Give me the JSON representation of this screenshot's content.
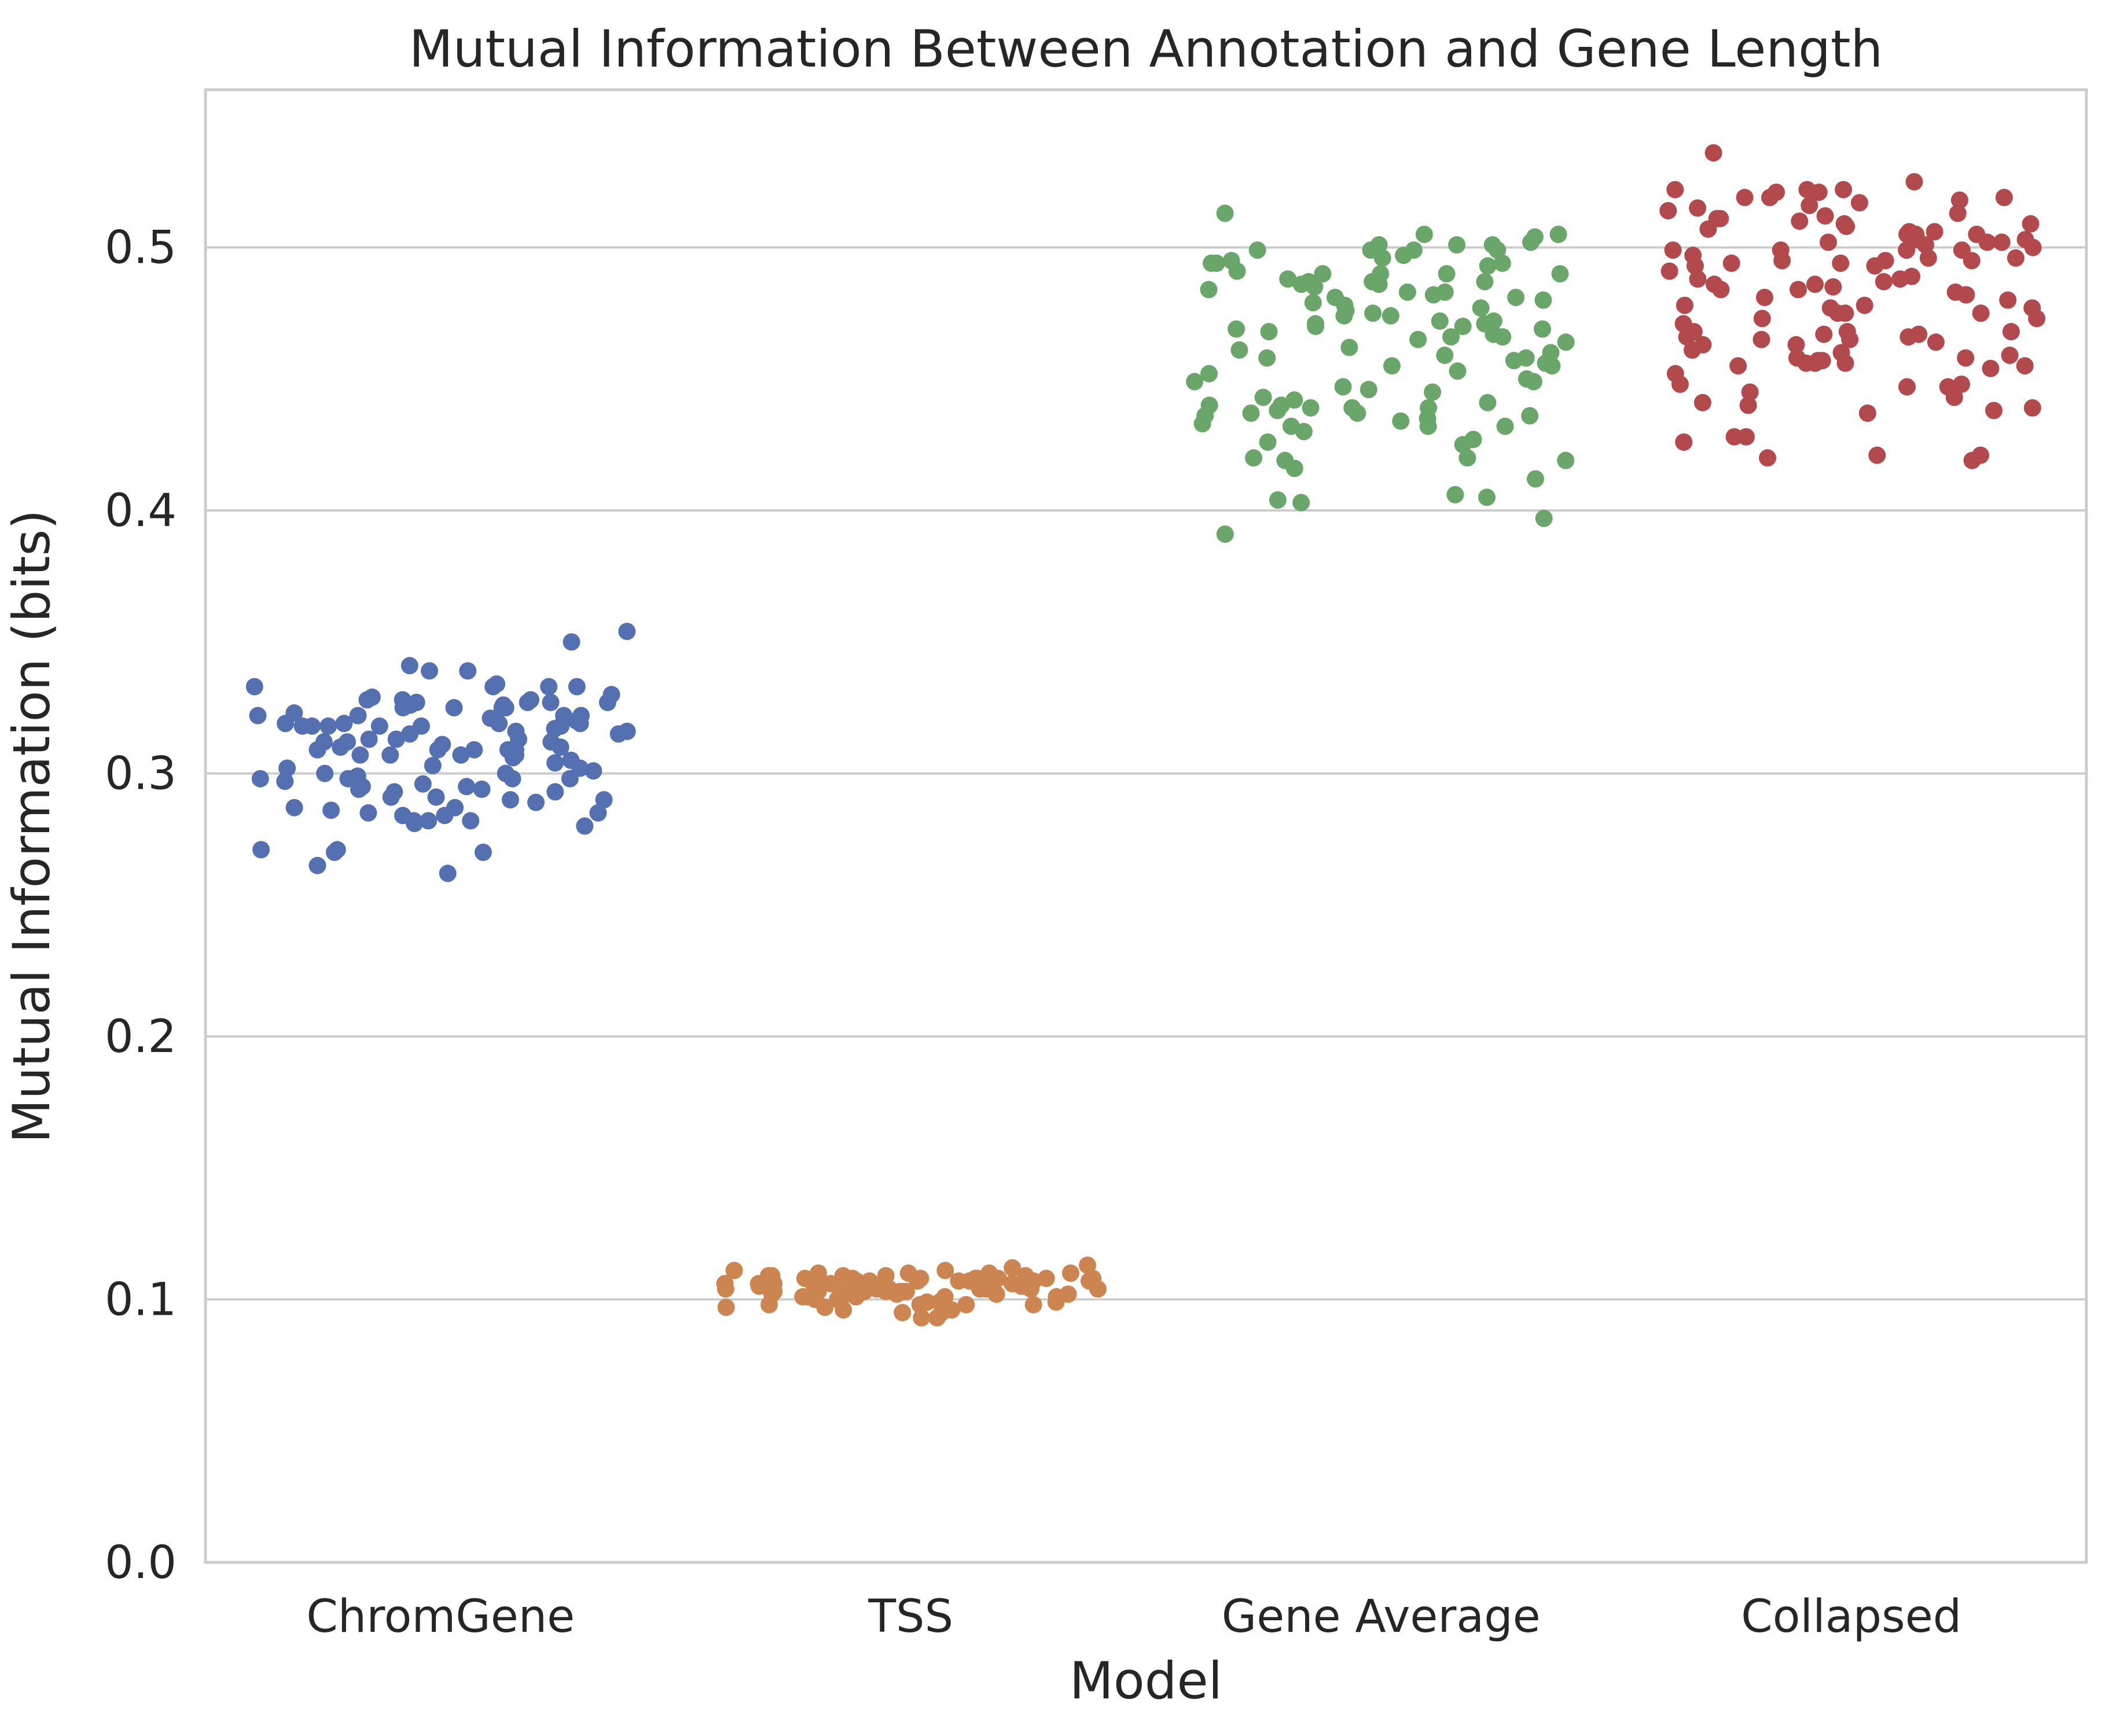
{
  "chart_data": {
    "type": "scatter",
    "subtype": "strip",
    "title": "Mutual Information Between Annotation and Gene Length",
    "xlabel": "Model",
    "ylabel": "Mutual Information (bits)",
    "categories": [
      "ChromGene",
      "TSS",
      "Gene Average",
      "Collapsed"
    ],
    "ylim": [
      0.0,
      0.56
    ],
    "yticks": [
      "0.0",
      "0.1",
      "0.2",
      "0.3",
      "0.4",
      "0.5"
    ],
    "grid": true,
    "legend": "none",
    "series": [
      {
        "category": "ChromGene",
        "color": "#5470b0",
        "values": [
          0.319,
          0.328,
          0.321,
          0.316,
          0.309,
          0.3,
          0.265,
          0.28,
          0.313,
          0.322,
          0.328,
          0.318,
          0.312,
          0.3,
          0.282,
          0.31,
          0.286,
          0.333,
          0.319,
          0.298,
          0.287,
          0.339,
          0.327,
          0.307,
          0.299,
          0.291,
          0.285,
          0.302,
          0.326,
          0.282,
          0.318,
          0.309,
          0.318,
          0.329,
          0.293,
          0.311,
          0.315,
          0.282,
          0.289,
          0.271,
          0.327,
          0.322,
          0.31,
          0.285,
          0.325,
          0.305,
          0.316,
          0.323,
          0.309,
          0.302,
          0.298,
          0.284,
          0.307,
          0.298,
          0.313,
          0.325,
          0.315,
          0.327,
          0.281,
          0.271,
          0.312,
          0.318,
          0.326,
          0.333,
          0.307,
          0.322,
          0.341,
          0.27,
          0.317,
          0.303,
          0.287,
          0.35,
          0.27,
          0.309,
          0.298,
          0.307,
          0.318,
          0.284,
          0.325,
          0.295,
          0.291,
          0.33,
          0.318,
          0.262,
          0.301,
          0.294,
          0.322,
          0.333,
          0.334,
          0.328,
          0.293,
          0.29,
          0.294,
          0.327,
          0.354,
          0.309,
          0.312,
          0.295,
          0.325,
          0.333,
          0.339,
          0.306,
          0.297,
          0.29,
          0.319,
          0.319,
          0.296,
          0.304,
          0.313,
          0.32
        ]
      },
      {
        "category": "TSS",
        "color": "#cc8550",
        "values": [
          0.107,
          0.109,
          0.104,
          0.106,
          0.097,
          0.103,
          0.11,
          0.107,
          0.105,
          0.104,
          0.111,
          0.108,
          0.1,
          0.106,
          0.11,
          0.093,
          0.098,
          0.105,
          0.108,
          0.103,
          0.107,
          0.102,
          0.106,
          0.109,
          0.093,
          0.101,
          0.108,
          0.104,
          0.096,
          0.106,
          0.107,
          0.103,
          0.1,
          0.108,
          0.105,
          0.099,
          0.113,
          0.104,
          0.107,
          0.098,
          0.105,
          0.109,
          0.095,
          0.103,
          0.106,
          0.101,
          0.108,
          0.104,
          0.096,
          0.107,
          0.105,
          0.102,
          0.109,
          0.098,
          0.112,
          0.104,
          0.106,
          0.101,
          0.108,
          0.103,
          0.11,
          0.1,
          0.106,
          0.099,
          0.104,
          0.108,
          0.101,
          0.105,
          0.095,
          0.107,
          0.103,
          0.108,
          0.1,
          0.104,
          0.106,
          0.098,
          0.102,
          0.108,
          0.105,
          0.104,
          0.097,
          0.103,
          0.106,
          0.111,
          0.108,
          0.11,
          0.102,
          0.106,
          0.104,
          0.107,
          0.099,
          0.105,
          0.103,
          0.109,
          0.101
        ]
      },
      {
        "category": "Gene Average",
        "color": "#6aa66a",
        "values": [
          0.439,
          0.397,
          0.48,
          0.505,
          0.474,
          0.458,
          0.416,
          0.452,
          0.478,
          0.447,
          0.456,
          0.49,
          0.436,
          0.462,
          0.481,
          0.499,
          0.502,
          0.43,
          0.455,
          0.47,
          0.419,
          0.493,
          0.446,
          0.459,
          0.436,
          0.487,
          0.441,
          0.465,
          0.439,
          0.497,
          0.391,
          0.412,
          0.427,
          0.433,
          0.472,
          0.486,
          0.494,
          0.42,
          0.46,
          0.474,
          0.45,
          0.468,
          0.461,
          0.438,
          0.504,
          0.467,
          0.442,
          0.485,
          0.481,
          0.471,
          0.406,
          0.453,
          0.426,
          0.432,
          0.466,
          0.477,
          0.404,
          0.437,
          0.513,
          0.419,
          0.49,
          0.475,
          0.501,
          0.494,
          0.471,
          0.432,
          0.449,
          0.443,
          0.484,
          0.488,
          0.405,
          0.49,
          0.445,
          0.483,
          0.469,
          0.499,
          0.437,
          0.482,
          0.435,
          0.479,
          0.491,
          0.499,
          0.434,
          0.487,
          0.439,
          0.44,
          0.464,
          0.501,
          0.472,
          0.44,
          0.458,
          0.483,
          0.469,
          0.476,
          0.499,
          0.505,
          0.49,
          0.487,
          0.466,
          0.455,
          0.496,
          0.501,
          0.425,
          0.403,
          0.432,
          0.494,
          0.42,
          0.457,
          0.486,
          0.47,
          0.449,
          0.495
        ]
      },
      {
        "category": "Collapsed",
        "color": "#b24a4d",
        "values": [
          0.477,
          0.458,
          0.487,
          0.509,
          0.448,
          0.506,
          0.505,
          0.5,
          0.447,
          0.503,
          0.536,
          0.499,
          0.458,
          0.525,
          0.465,
          0.519,
          0.475,
          0.452,
          0.505,
          0.507,
          0.484,
          0.473,
          0.486,
          0.477,
          0.426,
          0.468,
          0.502,
          0.488,
          0.439,
          0.518,
          0.483,
          0.456,
          0.428,
          0.464,
          0.478,
          0.499,
          0.421,
          0.521,
          0.502,
          0.466,
          0.473,
          0.511,
          0.493,
          0.495,
          0.421,
          0.489,
          0.497,
          0.42,
          0.465,
          0.488,
          0.494,
          0.463,
          0.519,
          0.475,
          0.441,
          0.475,
          0.48,
          0.471,
          0.496,
          0.467,
          0.457,
          0.514,
          0.486,
          0.455,
          0.501,
          0.495,
          0.506,
          0.519,
          0.509,
          0.445,
          0.443,
          0.491,
          0.481,
          0.499,
          0.522,
          0.457,
          0.467,
          0.461,
          0.448,
          0.502,
          0.468,
          0.517,
          0.496,
          0.482,
          0.428,
          0.466,
          0.44,
          0.459,
          0.513,
          0.463,
          0.455,
          0.521,
          0.515,
          0.484,
          0.505,
          0.468,
          0.485,
          0.46,
          0.499,
          0.478,
          0.522,
          0.493,
          0.438,
          0.447,
          0.454,
          0.51,
          0.522,
          0.511,
          0.437,
          0.495,
          0.494,
          0.482,
          0.456,
          0.456,
          0.419,
          0.503,
          0.508,
          0.516,
          0.512
        ]
      }
    ]
  }
}
